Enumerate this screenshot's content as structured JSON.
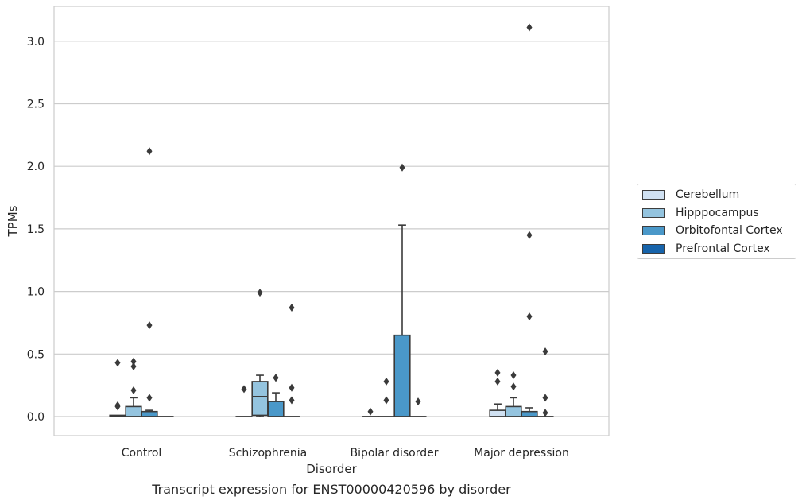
{
  "chart_data": {
    "type": "box",
    "title": "",
    "caption": "Transcript expression for ENST00000420596 by disorder",
    "xlabel": "Disorder",
    "ylabel": "TPMs",
    "ylim": [
      -0.16,
      3.27
    ],
    "yticks": [
      "0.0",
      "0.5",
      "1.0",
      "1.5",
      "2.0",
      "2.5",
      "3.0"
    ],
    "grid": "horizontal",
    "legend_position": "right",
    "categories": [
      "Control",
      "Schizophrenia",
      "Bipolar disorder",
      "Major depression"
    ],
    "series": [
      {
        "name": "Cerebellum",
        "color": "#d0e1f2",
        "boxes": [
          {
            "q1": 0.0,
            "median": 0.0,
            "q3": 0.01,
            "whisker_low": 0.0,
            "whisker_high": 0.01,
            "outliers": [
              0.43,
              0.09,
              0.08
            ]
          },
          {
            "q1": 0.0,
            "median": 0.0,
            "q3": 0.0,
            "whisker_low": 0.0,
            "whisker_high": 0.0,
            "outliers": [
              0.22
            ]
          },
          {
            "q1": 0.0,
            "median": 0.0,
            "q3": 0.0,
            "whisker_low": 0.0,
            "whisker_high": 0.0,
            "outliers": [
              0.04
            ]
          },
          {
            "q1": 0.0,
            "median": 0.0,
            "q3": 0.05,
            "whisker_low": 0.0,
            "whisker_high": 0.1,
            "outliers": [
              0.35,
              0.28
            ]
          }
        ]
      },
      {
        "name": "Hipppocampus",
        "color": "#94c4df",
        "boxes": [
          {
            "q1": 0.0,
            "median": 0.0,
            "q3": 0.08,
            "whisker_low": 0.0,
            "whisker_high": 0.15,
            "outliers": [
              0.44,
              0.4,
              0.21
            ]
          },
          {
            "q1": 0.01,
            "median": 0.16,
            "q3": 0.28,
            "whisker_low": 0.0,
            "whisker_high": 0.33,
            "outliers": [
              0.99
            ]
          },
          {
            "q1": 0.0,
            "median": 0.0,
            "q3": 0.0,
            "whisker_low": 0.0,
            "whisker_high": 0.0,
            "outliers": [
              0.28,
              0.13
            ]
          },
          {
            "q1": 0.0,
            "median": 0.0,
            "q3": 0.08,
            "whisker_low": 0.0,
            "whisker_high": 0.15,
            "outliers": [
              0.33,
              0.24
            ]
          }
        ]
      },
      {
        "name": "Orbitofontal Cortex",
        "color": "#4a98c9",
        "boxes": [
          {
            "q1": 0.0,
            "median": 0.0,
            "q3": 0.04,
            "whisker_low": 0.0,
            "whisker_high": 0.05,
            "outliers": [
              2.12,
              0.73,
              0.15
            ]
          },
          {
            "q1": 0.0,
            "median": 0.0,
            "q3": 0.12,
            "whisker_low": 0.0,
            "whisker_high": 0.19,
            "outliers": [
              0.31,
              0.31
            ]
          },
          {
            "q1": 0.0,
            "median": 0.0,
            "q3": 0.65,
            "whisker_low": 0.0,
            "whisker_high": 1.53,
            "outliers": [
              1.99
            ]
          },
          {
            "q1": 0.0,
            "median": 0.0,
            "q3": 0.04,
            "whisker_low": 0.0,
            "whisker_high": 0.07,
            "outliers": [
              3.11,
              1.45,
              0.8
            ]
          }
        ]
      },
      {
        "name": "Prefrontal Cortex",
        "color": "#1764ab",
        "boxes": [
          {
            "q1": 0.0,
            "median": 0.0,
            "q3": 0.0,
            "whisker_low": 0.0,
            "whisker_high": 0.0,
            "outliers": []
          },
          {
            "q1": 0.0,
            "median": 0.0,
            "q3": 0.0,
            "whisker_low": 0.0,
            "whisker_high": 0.0,
            "outliers": [
              0.87,
              0.23,
              0.13
            ]
          },
          {
            "q1": 0.0,
            "median": 0.0,
            "q3": 0.0,
            "whisker_low": 0.0,
            "whisker_high": 0.0,
            "outliers": [
              0.12
            ]
          },
          {
            "q1": 0.0,
            "median": 0.0,
            "q3": 0.0,
            "whisker_low": 0.0,
            "whisker_high": 0.0,
            "outliers": [
              0.52,
              0.15,
              0.03
            ]
          }
        ]
      }
    ]
  }
}
